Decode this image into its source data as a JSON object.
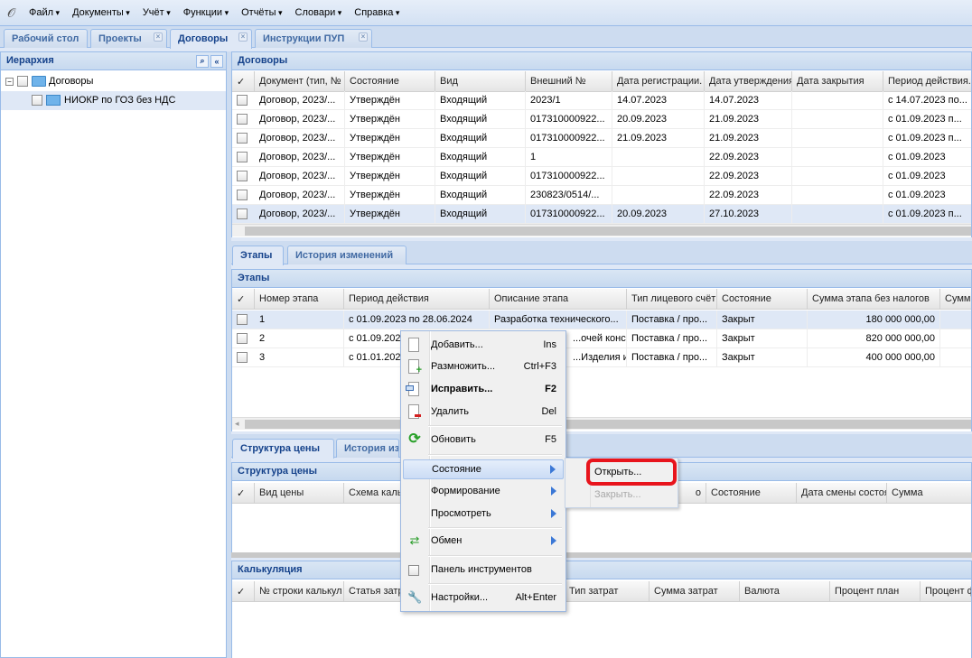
{
  "menubar": {
    "items": [
      "Файл",
      "Документы",
      "Учёт",
      "Функции",
      "Отчёты",
      "Словари",
      "Справка"
    ]
  },
  "tabs": [
    "Рабочий стол",
    "Проекты",
    "Договоры",
    "Инструкции ПУП"
  ],
  "hierarchy": {
    "title": "Иерархия",
    "root": "Договоры",
    "child": "НИОКР по ГОЗ без НДС"
  },
  "contracts": {
    "title": "Договоры",
    "columns": [
      "Документ (тип, №",
      "Состояние",
      "Вид",
      "Внешний №",
      "Дата регистрации.",
      "Дата утверждения",
      "Дата закрытия",
      "Период действия..."
    ],
    "rows": [
      [
        "Договор, 2023/...",
        "Утверждён",
        "Входящий",
        "2023/1",
        "14.07.2023",
        "14.07.2023",
        "",
        "с 14.07.2023 по..."
      ],
      [
        "Договор, 2023/...",
        "Утверждён",
        "Входящий",
        "017310000922...",
        "20.09.2023",
        "21.09.2023",
        "",
        "с 01.09.2023 п..."
      ],
      [
        "Договор, 2023/...",
        "Утверждён",
        "Входящий",
        "017310000922...",
        "21.09.2023",
        "21.09.2023",
        "",
        "с 01.09.2023 п..."
      ],
      [
        "Договор, 2023/...",
        "Утверждён",
        "Входящий",
        "1",
        "",
        "22.09.2023",
        "",
        "с 01.09.2023"
      ],
      [
        "Договор, 2023/...",
        "Утверждён",
        "Входящий",
        "017310000922...",
        "",
        "22.09.2023",
        "",
        "с 01.09.2023"
      ],
      [
        "Договор, 2023/...",
        "Утверждён",
        "Входящий",
        "230823/0514/...",
        "",
        "22.09.2023",
        "",
        "с 01.09.2023"
      ],
      [
        "Договор, 2023/...",
        "Утверждён",
        "Входящий",
        "017310000922...",
        "20.09.2023",
        "27.10.2023",
        "",
        "с 01.09.2023 п..."
      ]
    ]
  },
  "detail_tabs": [
    "Этапы",
    "История изменений"
  ],
  "stages": {
    "title": "Этапы",
    "columns": [
      "Номер этапа",
      "Период действия",
      "Описание этапа",
      "Тип лицевого счёт",
      "Состояние",
      "Сумма этапа без налогов",
      "Сумма"
    ],
    "rows": [
      [
        "1",
        "с 01.09.2023 по 28.06.2024",
        "Разработка технического...",
        "Поставка / про...",
        "Закрыт",
        "180 000 000,00",
        ""
      ],
      [
        "2",
        "с 01.09.2023",
        "...очей конс...",
        "Поставка / про...",
        "Закрыт",
        "820 000 000,00",
        ""
      ],
      [
        "3",
        "с 01.01.2024",
        "...Изделия и ...",
        "Поставка / про...",
        "Закрыт",
        "400 000 000,00",
        ""
      ]
    ]
  },
  "price_tabs": [
    "Структура цены",
    "История из"
  ],
  "price": {
    "title": "Структура цены",
    "columns": [
      "Вид цены",
      "Схема каль",
      "о",
      "Состояние",
      "Дата смены состоя",
      "Сумма"
    ]
  },
  "calc": {
    "title": "Калькуляция",
    "columns": [
      "№ строки калькул",
      "Статья затр",
      "Тип затрат",
      "Сумма затрат",
      "Валюта",
      "Процент план",
      "Процент ф"
    ]
  },
  "context_menu": {
    "items": [
      {
        "label": "Добавить...",
        "shortcut": "Ins"
      },
      {
        "label": "Размножить...",
        "shortcut": "Ctrl+F3"
      },
      {
        "label": "Исправить...",
        "shortcut": "F2"
      },
      {
        "label": "Удалить",
        "shortcut": "Del"
      },
      {
        "label": "Обновить",
        "shortcut": "F5"
      },
      {
        "label": "Состояние"
      },
      {
        "label": "Формирование"
      },
      {
        "label": "Просмотреть"
      },
      {
        "label": "Обмен"
      },
      {
        "label": "Панель инструментов"
      },
      {
        "label": "Настройки...",
        "shortcut": "Alt+Enter"
      }
    ]
  },
  "submenu": {
    "items": [
      "Открыть...",
      "Закрыть..."
    ],
    "highlight_color": "#e8141c"
  }
}
